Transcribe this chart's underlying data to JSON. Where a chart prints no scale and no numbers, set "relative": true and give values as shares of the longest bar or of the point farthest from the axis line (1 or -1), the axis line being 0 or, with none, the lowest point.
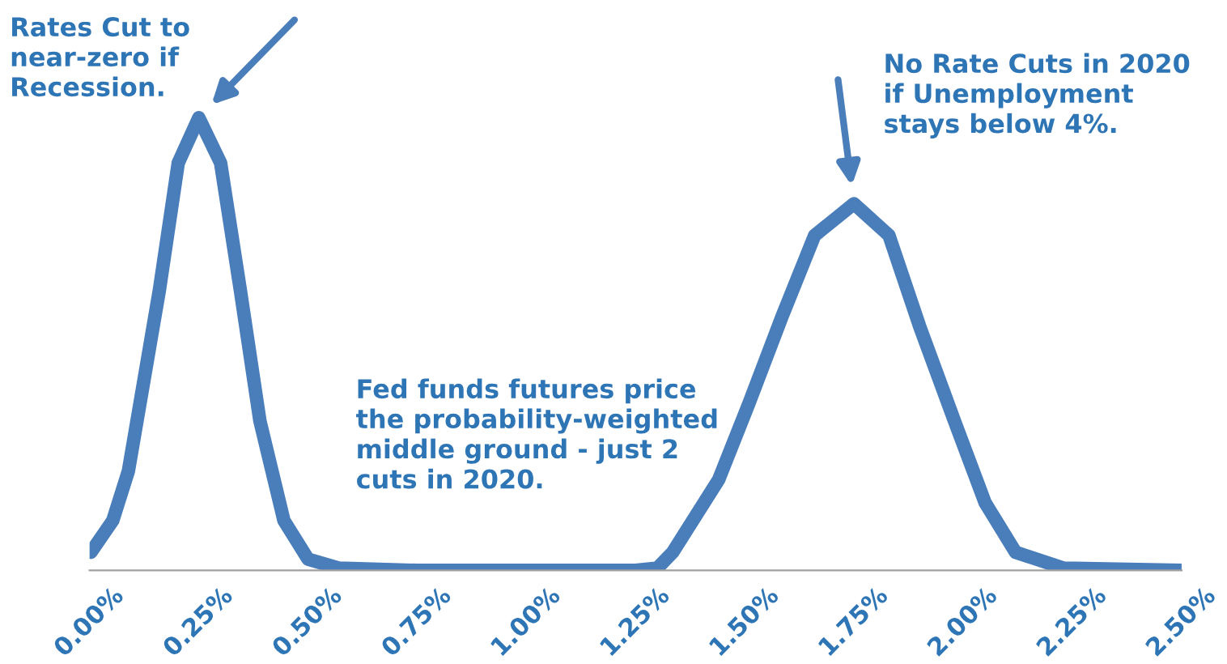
{
  "chart_data": {
    "type": "line",
    "relative": true,
    "x": [
      0.003,
      0.053,
      0.089,
      0.16,
      0.203,
      0.25,
      0.3,
      0.345,
      0.39,
      0.445,
      0.5,
      0.57,
      0.75,
      1.0,
      1.25,
      1.3,
      1.335,
      1.44,
      1.51,
      1.585,
      1.66,
      1.75,
      1.83,
      1.9,
      1.98,
      2.05,
      2.12,
      2.23,
      2.5
    ],
    "series": [
      {
        "color": "#4a7ebb",
        "values": [
          0.04,
          0.11,
          0.22,
          0.62,
          0.9,
          1.0,
          0.9,
          0.62,
          0.33,
          0.11,
          0.025,
          0.005,
          0,
          0,
          0,
          0.005,
          0.04,
          0.2,
          0.37,
          0.56,
          0.74,
          0.81,
          0.74,
          0.54,
          0.33,
          0.15,
          0.04,
          0.005,
          0
        ]
      }
    ],
    "xlim": [
      0,
      2.5
    ],
    "xticks": [
      {
        "value": 0,
        "label": "0.00%"
      },
      {
        "value": 0.25,
        "label": "0.25%"
      },
      {
        "value": 0.5,
        "label": "0.50%"
      },
      {
        "value": 0.75,
        "label": "0.75%"
      },
      {
        "value": 1.0,
        "label": "1.00%"
      },
      {
        "value": 1.25,
        "label": "1.25%"
      },
      {
        "value": 1.5,
        "label": "1.50%"
      },
      {
        "value": 1.75,
        "label": "1.75%"
      },
      {
        "value": 2.0,
        "label": "2.00%"
      },
      {
        "value": 2.25,
        "label": "2.25%"
      },
      {
        "value": 2.5,
        "label": "2.50%"
      }
    ],
    "annotations": [
      "Rates Cut to\nnear-zero if\nRecession.",
      "No Rate Cuts in 2020\nif Unemployment\nstays below 4%.",
      "Fed funds futures price\nthe probability-weighted\nmiddle ground - just 2\ncuts in 2020."
    ],
    "line_style": "solid",
    "marker": "none",
    "legend": false
  }
}
